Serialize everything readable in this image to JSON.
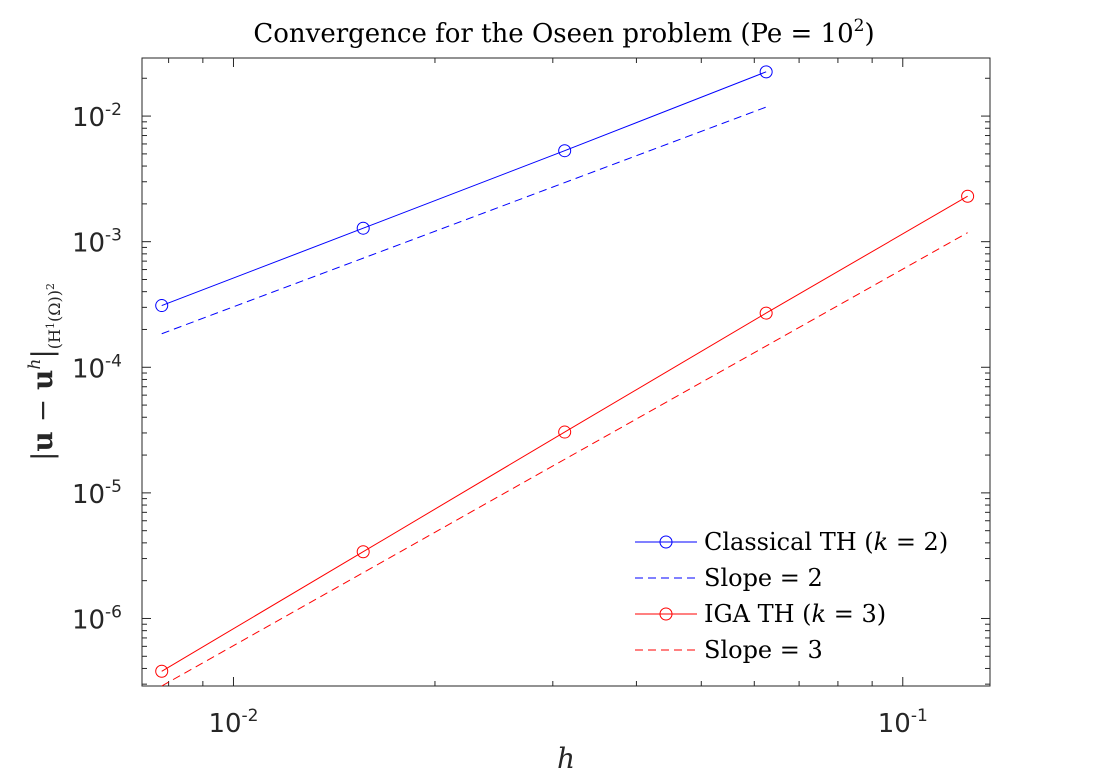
{
  "chart_data": {
    "type": "line",
    "xscale": "log",
    "yscale": "log",
    "title": "Convergence for the Oseen problem (Pe = 10²)",
    "title_parts": {
      "main": "Convergence for the Oseen problem (Pe = 10",
      "exp": "2",
      "close": ")"
    },
    "xlabel": "h",
    "ylabel": "|u − u^h|_(H¹(Ω))²",
    "ylabel_parts": {
      "bar": "|",
      "u": "u",
      "minus": " − ",
      "uh": "u",
      "h": "h",
      "sub": "(H",
      "sub1": "1",
      "subomega": "(Ω))",
      "sub2": "2"
    },
    "xlim": [
      0.0073,
      0.135
    ],
    "ylim": [
      2.9e-07,
      0.029
    ],
    "xticks": [
      {
        "value": 0.01,
        "base": "10",
        "exp": "-2"
      },
      {
        "value": 0.1,
        "base": "10",
        "exp": "-1"
      }
    ],
    "yticks": [
      {
        "value": 1e-06,
        "base": "10",
        "exp": "-6"
      },
      {
        "value": 1e-05,
        "base": "10",
        "exp": "-5"
      },
      {
        "value": 0.0001,
        "base": "10",
        "exp": "-4"
      },
      {
        "value": 0.001,
        "base": "10",
        "exp": "-3"
      },
      {
        "value": 0.01,
        "base": "10",
        "exp": "-2"
      }
    ],
    "grid": false,
    "legend_location": "bottom-right",
    "series": [
      {
        "name": "Classical TH (k = 2)",
        "legend": {
          "pre": "Classical TH (",
          "k": "k",
          "post": " = 2)"
        },
        "color": "#0000ff",
        "style": "solid",
        "marker": "circle",
        "x": [
          0.0078125,
          0.015625,
          0.03125,
          0.0625
        ],
        "y": [
          0.00031,
          0.00128,
          0.0053,
          0.0225
        ]
      },
      {
        "name": "Slope = 2",
        "legend": {
          "pre": "Slope = 2",
          "k": "",
          "post": ""
        },
        "color": "#0000ff",
        "style": "dashed",
        "marker": "none",
        "x": [
          0.0078125,
          0.0625
        ],
        "y": [
          0.000185,
          0.0118
        ]
      },
      {
        "name": "IGA TH (k = 3)",
        "legend": {
          "pre": "IGA TH (",
          "k": "k",
          "post": " = 3)"
        },
        "color": "#ff0000",
        "style": "solid",
        "marker": "circle",
        "x": [
          0.0078125,
          0.015625,
          0.03125,
          0.0625,
          0.125
        ],
        "y": [
          3.8e-07,
          3.4e-06,
          3.05e-05,
          0.00027,
          0.0023
        ]
      },
      {
        "name": "Slope = 3",
        "legend": {
          "pre": "Slope = 3",
          "k": "",
          "post": ""
        },
        "color": "#ff0000",
        "style": "dashed",
        "marker": "none",
        "x": [
          0.0078125,
          0.125
        ],
        "y": [
          2.9e-07,
          0.00118
        ]
      }
    ]
  }
}
